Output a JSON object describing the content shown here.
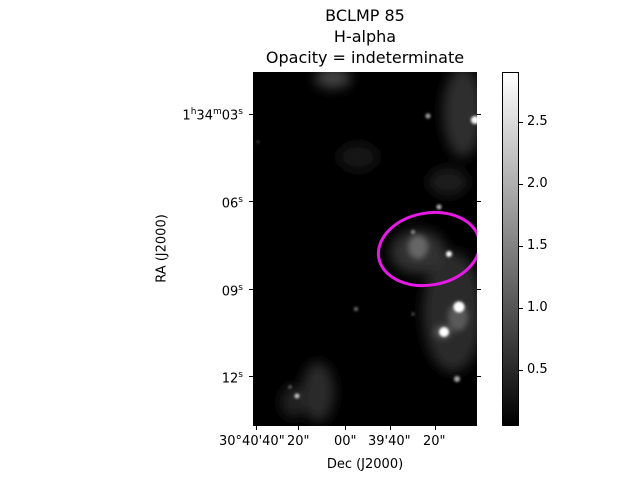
{
  "title": {
    "line1": "BCLMP 85",
    "line2": "H-alpha",
    "line3": "Opacity = indeterminate"
  },
  "axes": {
    "ylabel": "RA (J2000)",
    "xlabel": "Dec (J2000)",
    "y_ticks": [
      {
        "h": "1",
        "m": "34",
        "s": "03"
      },
      {
        "s": "06"
      },
      {
        "s": "09"
      },
      {
        "s": "12"
      }
    ],
    "x_ticks": [
      "30°40'40\"",
      "20\"",
      "00\"",
      "39'40\"",
      "20\""
    ]
  },
  "colorbar": {
    "ticks": [
      "2.5",
      "2.0",
      "1.5",
      "1.0",
      "0.5"
    ],
    "colors": [
      "#000000",
      "#ffffff"
    ]
  },
  "overlay": {
    "ellipse_color": "#e619e6"
  }
}
